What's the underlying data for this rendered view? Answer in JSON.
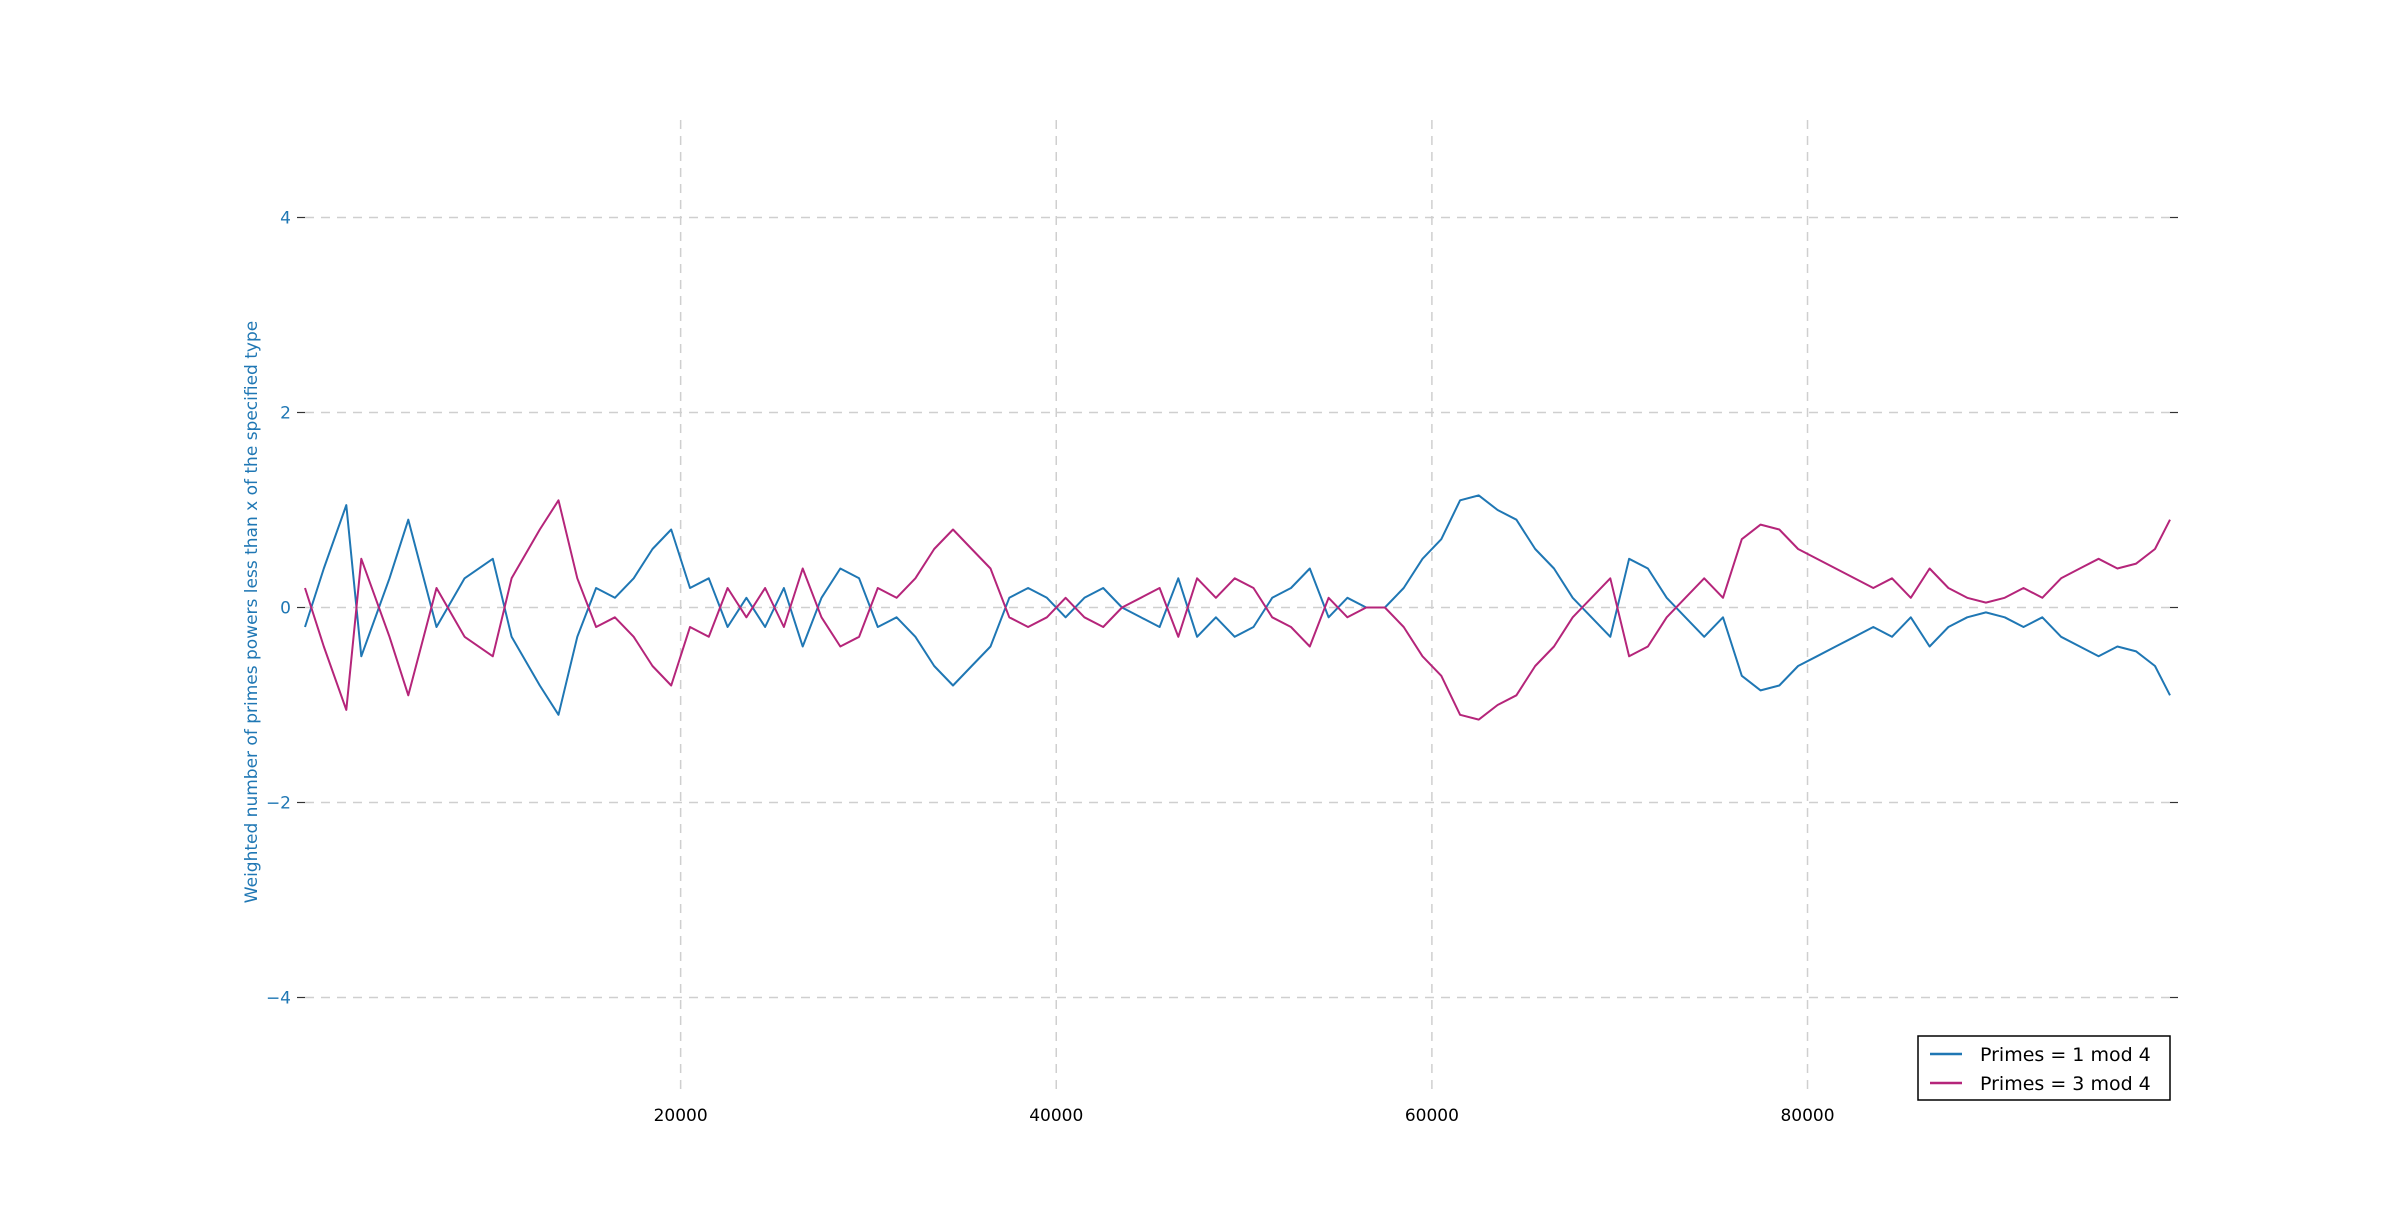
{
  "chart_data": {
    "type": "line",
    "title": "",
    "xlabel": "",
    "ylabel": "Weighted number of primes powers less than x of the specified type",
    "xlim": [
      0,
      99300
    ],
    "ylim": [
      -5,
      5
    ],
    "x_ticks": [
      20000,
      40000,
      60000,
      80000
    ],
    "x_tick_labels": [
      "20000",
      "40000",
      "60000",
      "80000"
    ],
    "y_ticks": [
      4,
      2,
      0,
      -2,
      -4
    ],
    "y_tick_labels": [
      "4",
      "2",
      "0",
      "−2",
      "−4"
    ],
    "grid": true,
    "legend_position": "bottom-right",
    "series": [
      {
        "name": "Primes = 1 mod 4",
        "color": "#1f77b4",
        "x": [
          0,
          1000,
          2200,
          3000,
          4500,
          5500,
          7000,
          8500,
          10000,
          11000,
          12500,
          13500,
          14500,
          15500,
          16500,
          17500,
          18500,
          19500,
          20500,
          21500,
          22500,
          23500,
          24500,
          25500,
          26500,
          27500,
          28500,
          29500,
          30500,
          31500,
          32500,
          33500,
          34500,
          35500,
          36500,
          37500,
          38500,
          39500,
          40500,
          41500,
          42500,
          43500,
          44500,
          45500,
          46500,
          47500,
          48500,
          49500,
          50500,
          51500,
          52500,
          53500,
          54500,
          55500,
          56500,
          57500,
          58500,
          59500,
          60500,
          61500,
          62500,
          63500,
          64500,
          65500,
          66500,
          67500,
          68500,
          69500,
          70500,
          71500,
          72500,
          73500,
          74500,
          75500,
          76500,
          77500,
          78500,
          79500,
          80500,
          81500,
          82500,
          83500,
          84500,
          85500,
          86500,
          87500,
          88500,
          89500,
          90500,
          91500,
          92500,
          93500,
          94500,
          95500,
          96500,
          97500,
          98500,
          99300
        ],
        "y": [
          -0.2,
          0.4,
          1.05,
          -0.5,
          0.3,
          0.9,
          -0.2,
          0.3,
          0.5,
          -0.3,
          -0.8,
          -1.1,
          -0.3,
          0.2,
          0.1,
          0.3,
          0.6,
          0.8,
          0.2,
          0.3,
          -0.2,
          0.1,
          -0.2,
          0.2,
          -0.4,
          0.1,
          0.4,
          0.3,
          -0.2,
          -0.1,
          -0.3,
          -0.6,
          -0.8,
          -0.6,
          -0.4,
          0.1,
          0.2,
          0.1,
          -0.1,
          0.1,
          0.2,
          0.0,
          -0.1,
          -0.2,
          0.3,
          -0.3,
          -0.1,
          -0.3,
          -0.2,
          0.1,
          0.2,
          0.4,
          -0.1,
          0.1,
          0.0,
          0.0,
          0.2,
          0.5,
          0.7,
          1.1,
          1.15,
          1.0,
          0.9,
          0.6,
          0.4,
          0.1,
          -0.1,
          -0.3,
          0.5,
          0.4,
          0.1,
          -0.1,
          -0.3,
          -0.1,
          -0.7,
          -0.85,
          -0.8,
          -0.6,
          -0.5,
          -0.4,
          -0.3,
          -0.2,
          -0.3,
          -0.1,
          -0.4,
          -0.2,
          -0.1,
          -0.05,
          -0.1,
          -0.2,
          -0.1,
          -0.3,
          -0.4,
          -0.5,
          -0.4,
          -0.45,
          -0.6,
          -0.9
        ]
      },
      {
        "name": "Primes = 3 mod 4",
        "color": "#b5257a",
        "x": [
          0,
          1000,
          2200,
          3000,
          4500,
          5500,
          7000,
          8500,
          10000,
          11000,
          12500,
          13500,
          14500,
          15500,
          16500,
          17500,
          18500,
          19500,
          20500,
          21500,
          22500,
          23500,
          24500,
          25500,
          26500,
          27500,
          28500,
          29500,
          30500,
          31500,
          32500,
          33500,
          34500,
          35500,
          36500,
          37500,
          38500,
          39500,
          40500,
          41500,
          42500,
          43500,
          44500,
          45500,
          46500,
          47500,
          48500,
          49500,
          50500,
          51500,
          52500,
          53500,
          54500,
          55500,
          56500,
          57500,
          58500,
          59500,
          60500,
          61500,
          62500,
          63500,
          64500,
          65500,
          66500,
          67500,
          68500,
          69500,
          70500,
          71500,
          72500,
          73500,
          74500,
          75500,
          76500,
          77500,
          78500,
          79500,
          80500,
          81500,
          82500,
          83500,
          84500,
          85500,
          86500,
          87500,
          88500,
          89500,
          90500,
          91500,
          92500,
          93500,
          94500,
          95500,
          96500,
          97500,
          98500,
          99300
        ],
        "y": [
          0.2,
          -0.4,
          -1.05,
          0.5,
          -0.3,
          -0.9,
          0.2,
          -0.3,
          -0.5,
          0.3,
          0.8,
          1.1,
          0.3,
          -0.2,
          -0.1,
          -0.3,
          -0.6,
          -0.8,
          -0.2,
          -0.3,
          0.2,
          -0.1,
          0.2,
          -0.2,
          0.4,
          -0.1,
          -0.4,
          -0.3,
          0.2,
          0.1,
          0.3,
          0.6,
          0.8,
          0.6,
          0.4,
          -0.1,
          -0.2,
          -0.1,
          0.1,
          -0.1,
          -0.2,
          0.0,
          0.1,
          0.2,
          -0.3,
          0.3,
          0.1,
          0.3,
          0.2,
          -0.1,
          -0.2,
          -0.4,
          0.1,
          -0.1,
          0.0,
          0.0,
          -0.2,
          -0.5,
          -0.7,
          -1.1,
          -1.15,
          -1.0,
          -0.9,
          -0.6,
          -0.4,
          -0.1,
          0.1,
          0.3,
          -0.5,
          -0.4,
          -0.1,
          0.1,
          0.3,
          0.1,
          0.7,
          0.85,
          0.8,
          0.6,
          0.5,
          0.4,
          0.3,
          0.2,
          0.3,
          0.1,
          0.4,
          0.2,
          0.1,
          0.05,
          0.1,
          0.2,
          0.1,
          0.3,
          0.4,
          0.5,
          0.4,
          0.45,
          0.6,
          0.9
        ]
      }
    ]
  }
}
